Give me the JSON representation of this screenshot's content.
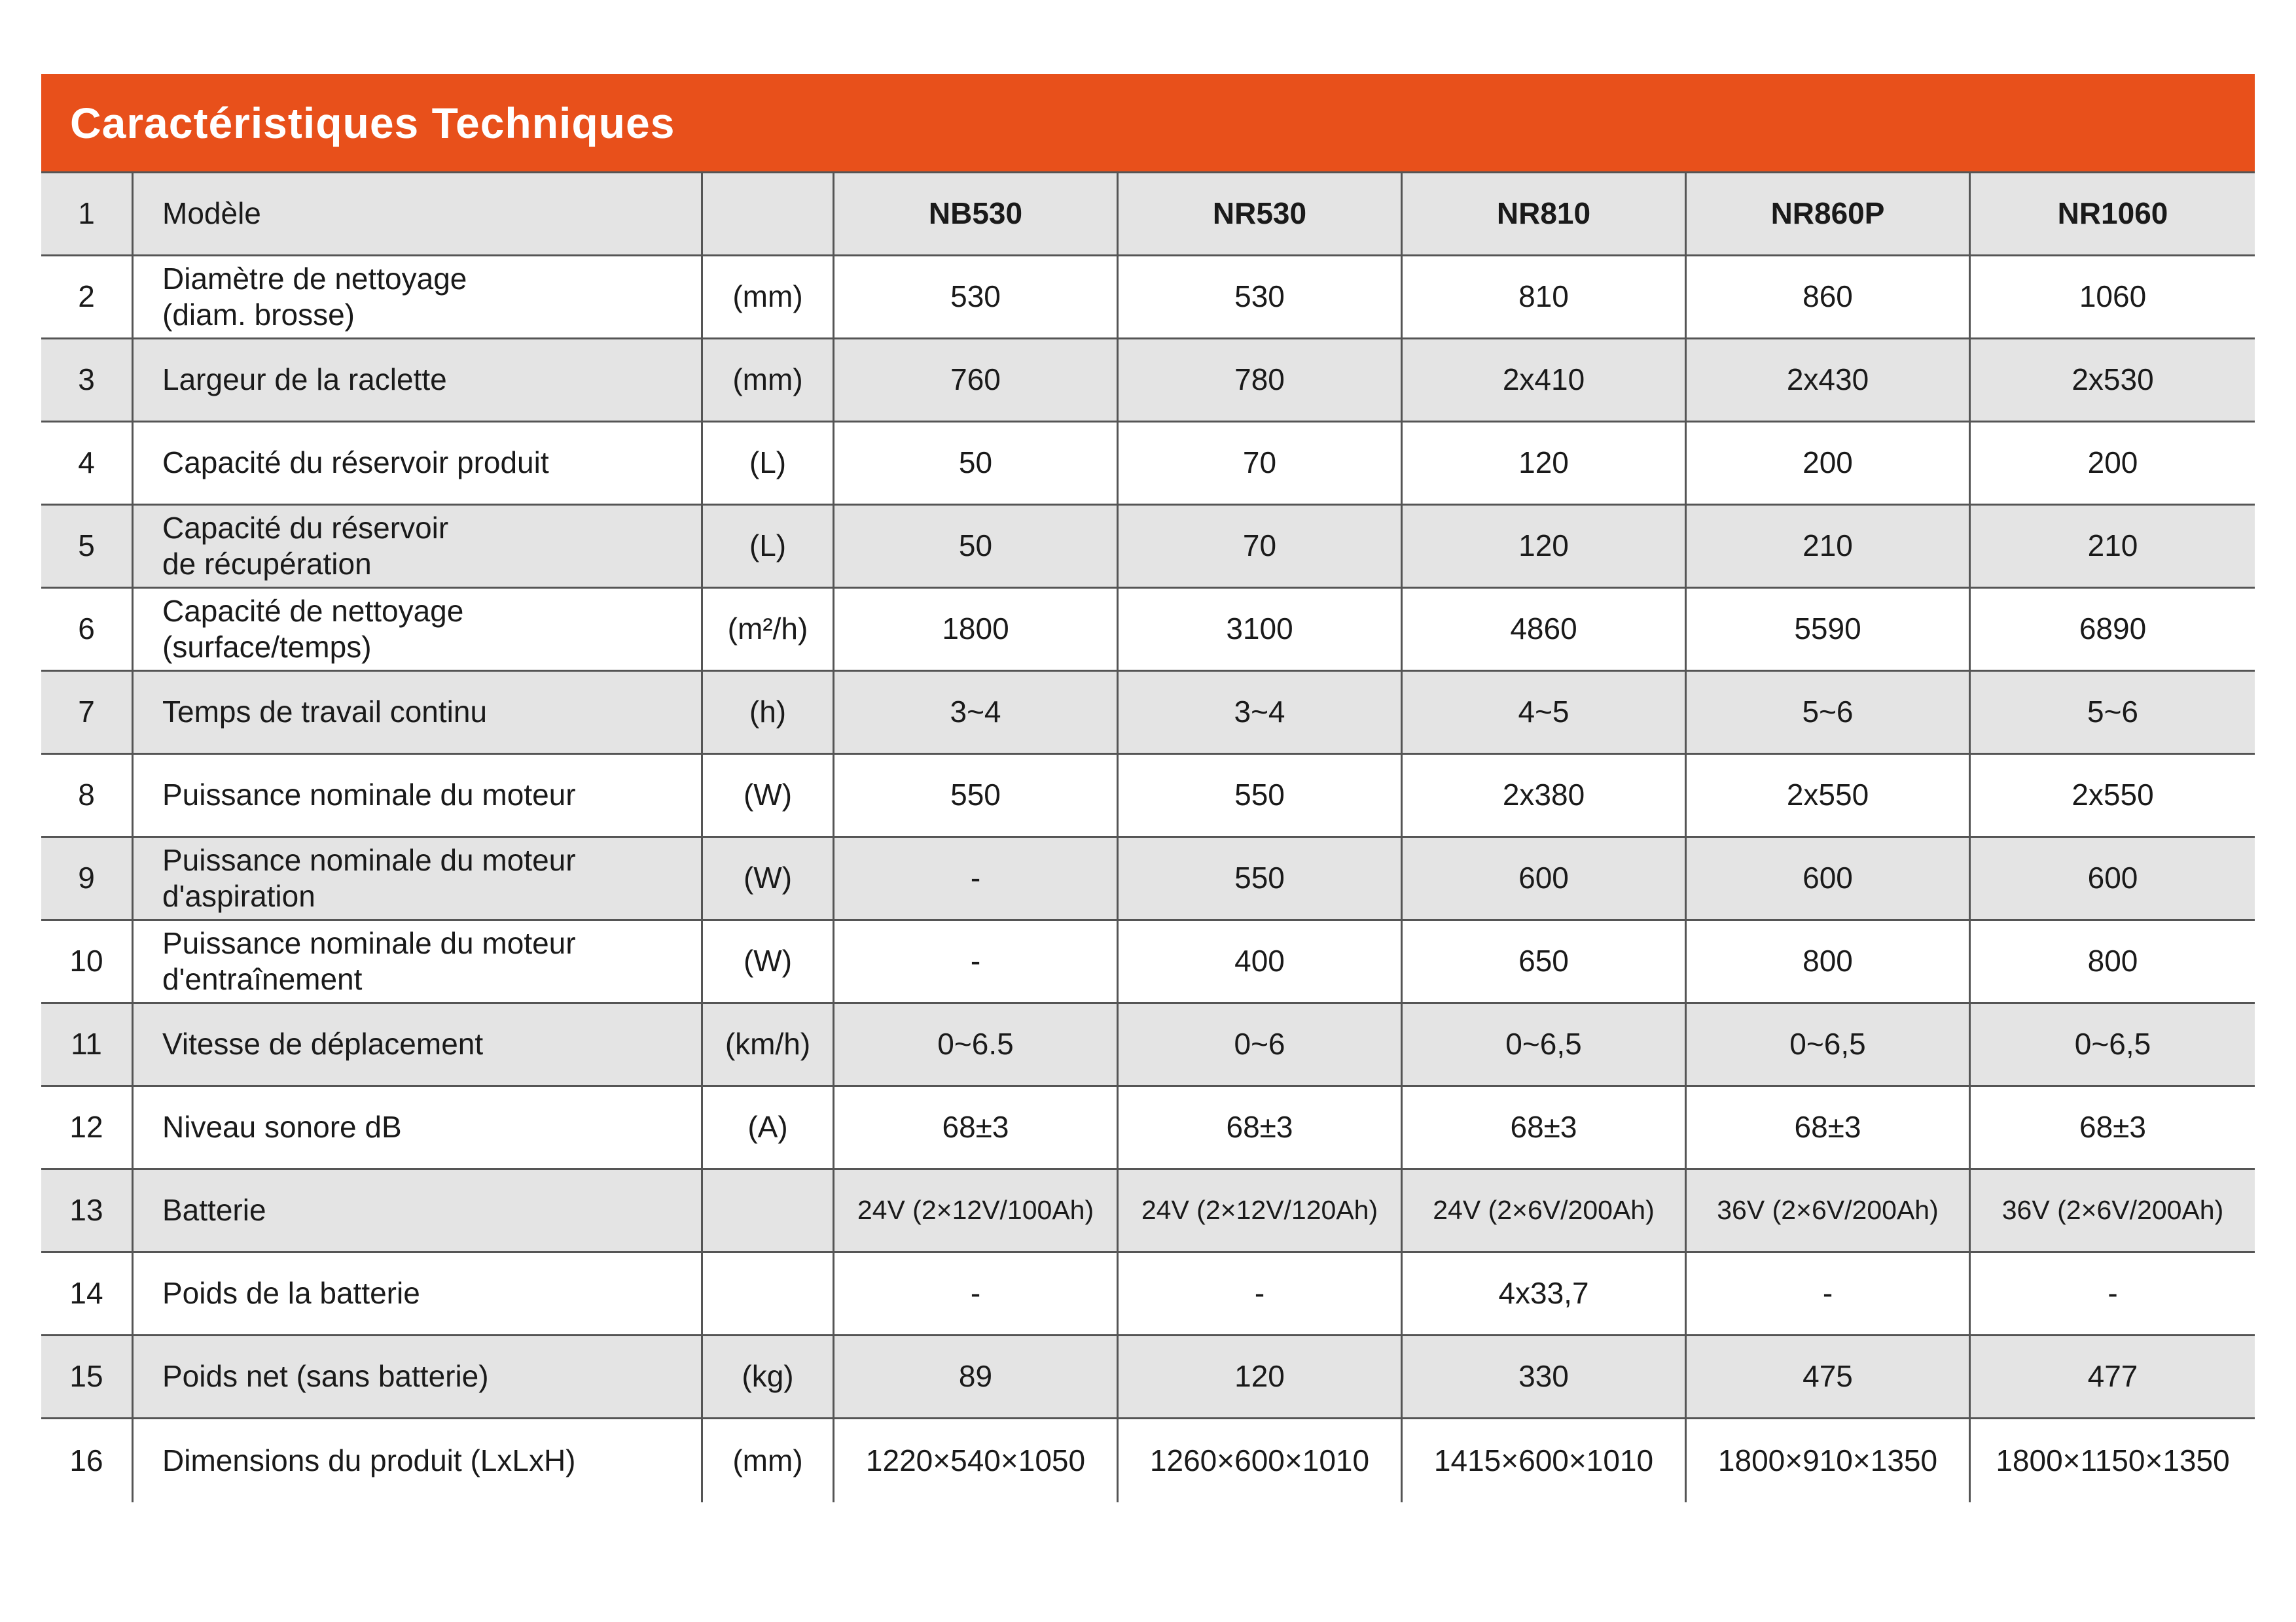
{
  "title_bar": {
    "text": "Caractéristiques Techniques",
    "bg_color": "#E8501B",
    "text_color": "#ffffff"
  },
  "colors": {
    "accent_orange": "#E8501B",
    "row_stripe_gray": "#E4E4E4",
    "border_gray": "#555555",
    "text_black": "#1a1a1a"
  },
  "table": {
    "models": [
      "NB530",
      "NR530",
      "NR810",
      "NR860P",
      "NR1060"
    ],
    "rows": [
      {
        "num": "1",
        "label": "Modèle",
        "unit": "",
        "values": [
          "NB530",
          "NR530",
          "NR810",
          "NR860P",
          "NR1060"
        ]
      },
      {
        "num": "2",
        "label": "Diamètre de nettoyage\n(diam. brosse)",
        "unit": "(mm)",
        "values": [
          "530",
          "530",
          "810",
          "860",
          "1060"
        ]
      },
      {
        "num": "3",
        "label": "Largeur de la raclette",
        "unit": "(mm)",
        "values": [
          "760",
          "780",
          "2x410",
          "2x430",
          "2x530"
        ]
      },
      {
        "num": "4",
        "label": "Capacité du réservoir produit",
        "unit": "(L)",
        "values": [
          "50",
          "70",
          "120",
          "200",
          "200"
        ]
      },
      {
        "num": "5",
        "label": "Capacité du réservoir\nde récupération",
        "unit": "(L)",
        "values": [
          "50",
          "70",
          "120",
          "210",
          "210"
        ]
      },
      {
        "num": "6",
        "label": "Capacité de nettoyage\n(surface/temps)",
        "unit": "(m²/h)",
        "values": [
          "1800",
          "3100",
          "4860",
          "5590",
          "6890"
        ]
      },
      {
        "num": "7",
        "label": "Temps de travail continu",
        "unit": "(h)",
        "values": [
          "3~4",
          "3~4",
          "4~5",
          "5~6",
          "5~6"
        ]
      },
      {
        "num": "8",
        "label": "Puissance nominale du moteur",
        "unit": "(W)",
        "values": [
          "550",
          "550",
          "2x380",
          "2x550",
          "2x550"
        ]
      },
      {
        "num": "9",
        "label": "Puissance nominale du moteur\nd'aspiration",
        "unit": "(W)",
        "values": [
          "-",
          "550",
          "600",
          "600",
          "600"
        ]
      },
      {
        "num": "10",
        "label": "Puissance nominale du moteur\nd'entraînement",
        "unit": "(W)",
        "values": [
          "-",
          "400",
          "650",
          "800",
          "800"
        ]
      },
      {
        "num": "11",
        "label": "Vitesse de déplacement",
        "unit": "(km/h)",
        "values": [
          "0~6.5",
          "0~6",
          "0~6,5",
          "0~6,5",
          "0~6,5"
        ]
      },
      {
        "num": "12",
        "label": "Niveau sonore dB",
        "unit": "(A)",
        "values": [
          "68±3",
          "68±3",
          "68±3",
          "68±3",
          "68±3"
        ]
      },
      {
        "num": "13",
        "label": "Batterie",
        "unit": "",
        "values": [
          "24V (2×12V/100Ah)",
          "24V (2×12V/120Ah)",
          "24V (2×6V/200Ah)",
          "36V (2×6V/200Ah)",
          "36V (2×6V/200Ah)"
        ]
      },
      {
        "num": "14",
        "label": "Poids de la batterie",
        "unit": "",
        "values": [
          "-",
          "-",
          "4x33,7",
          "-",
          "-"
        ]
      },
      {
        "num": "15",
        "label": "Poids net (sans batterie)",
        "unit": "(kg)",
        "values": [
          "89",
          "120",
          "330",
          "475",
          "477"
        ]
      },
      {
        "num": "16",
        "label": "Dimensions du produit (LxLxH)",
        "unit": "(mm)",
        "values": [
          "1220×540×1050",
          "1260×600×1010",
          "1415×600×1010",
          "1800×910×1350",
          "1800×1150×1350"
        ]
      }
    ]
  }
}
